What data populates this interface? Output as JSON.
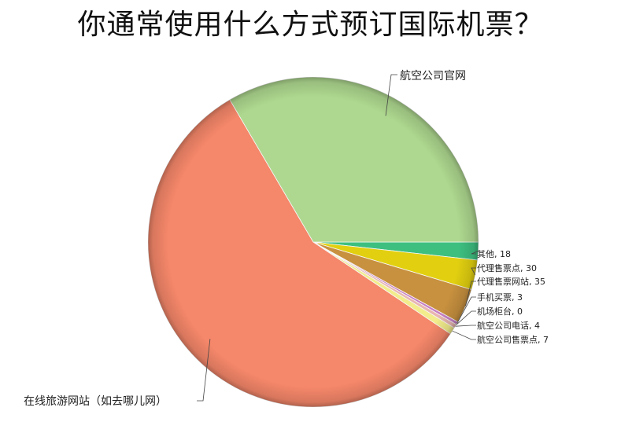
{
  "chart_data": {
    "type": "pie",
    "title": "你通常使用什么方式预订国际机票？",
    "slices": [
      {
        "label": "其他",
        "value": 18,
        "display": "其他, 18",
        "color": "#3dbf80"
      },
      {
        "label": "代理售票点",
        "value": 30,
        "display": "代理售票点, 30",
        "color": "#e2d010"
      },
      {
        "label": "代理售票网站",
        "value": 35,
        "display": "代理售票网站, 35",
        "color": "#c8913f"
      },
      {
        "label": "手机买票",
        "value": 3,
        "display": "手机买票, 3",
        "color": "#c77fc4"
      },
      {
        "label": "机场柜台",
        "value": 0,
        "display": "机场柜台, 0",
        "color": "#9a9ad8"
      },
      {
        "label": "航空公司电话",
        "value": 4,
        "display": "航空公司电话, 4",
        "color": "#e9b6b0"
      },
      {
        "label": "航空公司售票点",
        "value": 7,
        "display": "航空公司售票点, 7",
        "color": "#f2ec8c"
      },
      {
        "label": "在线旅游网站（如去哪儿网）",
        "value": 590,
        "display": "在线旅游网站（如去哪儿网）",
        "color": "#f5876a"
      },
      {
        "label": "航空公司官网",
        "value": 345,
        "display": "航空公司官网",
        "color": "#aed88f"
      }
    ],
    "legend": "none"
  }
}
